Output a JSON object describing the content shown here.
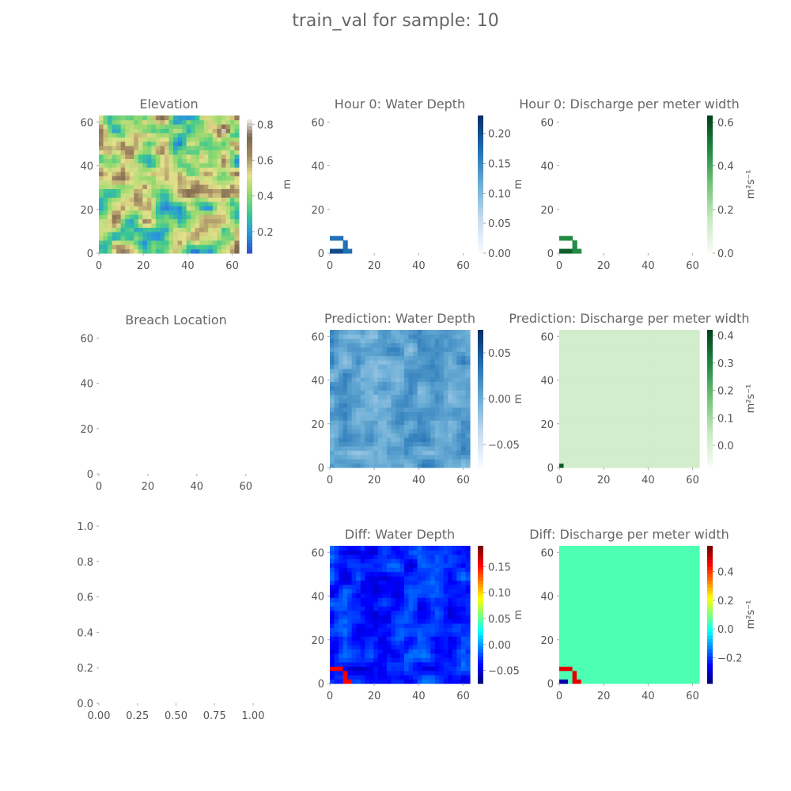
{
  "suptitle": "train_val for sample: 10",
  "colors": {
    "terrain": [
      "#2b55c8",
      "#2a9ad8",
      "#3cc890",
      "#96d96e",
      "#e4e08a",
      "#a28a62",
      "#7d6650",
      "#ffffff"
    ],
    "blues": [
      "#f7fbff",
      "#c6dbef",
      "#6baed6",
      "#2171b5",
      "#08306b"
    ],
    "greens": [
      "#f7fcf5",
      "#c7e9c0",
      "#74c476",
      "#238b45",
      "#00441b"
    ],
    "jet": [
      "#00007f",
      "#0000ff",
      "#007fff",
      "#00ffff",
      "#7fff7f",
      "#ffff00",
      "#ff7f00",
      "#ff0000",
      "#7f0000"
    ]
  },
  "chart_data": [
    {
      "type": "heatmap",
      "title": "Elevation",
      "xticks": [
        "0",
        "20",
        "40",
        "60"
      ],
      "yticks": [
        "0",
        "20",
        "40",
        "60"
      ],
      "xlim": [
        0,
        63
      ],
      "ylim": [
        0,
        63
      ],
      "colormap": "terrain",
      "colorbar": {
        "label": "m",
        "ticks": [
          "0.2",
          "0.4",
          "0.6",
          "0.8"
        ],
        "range": [
          0.08,
          0.85
        ]
      },
      "field": "elevation"
    },
    {
      "type": "heatmap",
      "title": "Hour 0: Water Depth",
      "xticks": [
        "0",
        "20",
        "40",
        "60"
      ],
      "yticks": [
        "0",
        "20",
        "40",
        "60"
      ],
      "xlim": [
        0,
        63
      ],
      "ylim": [
        0,
        63
      ],
      "colormap": "blues",
      "colorbar": {
        "label": "m",
        "ticks": [
          "0.00",
          "0.05",
          "0.10",
          "0.15",
          "0.20"
        ],
        "range": [
          0,
          0.23
        ]
      },
      "field": "breach-arc"
    },
    {
      "type": "heatmap",
      "title": "Hour 0: Discharge per meter width",
      "xticks": [
        "0",
        "20",
        "40",
        "60"
      ],
      "yticks": [
        "0",
        "20",
        "40",
        "60"
      ],
      "xlim": [
        0,
        63
      ],
      "ylim": [
        0,
        63
      ],
      "colormap": "greens",
      "colorbar": {
        "label": "m²s⁻¹",
        "ticks": [
          "0.0",
          "0.2",
          "0.4",
          "0.6"
        ],
        "range": [
          0,
          0.63
        ]
      },
      "field": "breach-arc"
    },
    {
      "type": "heatmap",
      "title": "Breach Location",
      "xticks": [
        "0",
        "20",
        "40",
        "60"
      ],
      "yticks": [
        "0",
        "20",
        "40",
        "60"
      ],
      "xlim": [
        0,
        63
      ],
      "ylim": [
        0,
        63
      ],
      "field": "empty"
    },
    {
      "type": "heatmap",
      "title": "Prediction: Water Depth",
      "xticks": [
        "0",
        "20",
        "40",
        "60"
      ],
      "yticks": [
        "0",
        "20",
        "40",
        "60"
      ],
      "xlim": [
        0,
        63
      ],
      "ylim": [
        0,
        63
      ],
      "colormap": "blues",
      "colorbar": {
        "label": "m",
        "ticks": [
          "−0.05",
          "0.00",
          "0.05"
        ],
        "range": [
          -0.075,
          0.075
        ]
      },
      "field": "prediction-depth"
    },
    {
      "type": "heatmap",
      "title": "Prediction: Discharge per meter width",
      "xticks": [
        "0",
        "20",
        "40",
        "60"
      ],
      "yticks": [
        "0",
        "20",
        "40",
        "60"
      ],
      "xlim": [
        0,
        63
      ],
      "ylim": [
        0,
        63
      ],
      "colormap": "greens",
      "colorbar": {
        "label": "m²s⁻¹",
        "ticks": [
          "0.0",
          "0.1",
          "0.2",
          "0.3",
          "0.4"
        ],
        "range": [
          -0.08,
          0.42
        ]
      },
      "field": "prediction-discharge"
    },
    {
      "type": "scatter",
      "title": "",
      "xticks": [
        "0.00",
        "0.25",
        "0.50",
        "0.75",
        "1.00"
      ],
      "yticks": [
        "0.0",
        "0.2",
        "0.4",
        "0.6",
        "0.8",
        "1.0"
      ],
      "xlim": [
        0,
        1
      ],
      "ylim": [
        0,
        1
      ],
      "field": "empty"
    },
    {
      "type": "heatmap",
      "title": "Diff: Water Depth",
      "xticks": [
        "0",
        "20",
        "40",
        "60"
      ],
      "yticks": [
        "0",
        "20",
        "40",
        "60"
      ],
      "xlim": [
        0,
        63
      ],
      "ylim": [
        0,
        63
      ],
      "colormap": "jet",
      "colorbar": {
        "label": "m",
        "ticks": [
          "−0.05",
          "0.00",
          "0.05",
          "0.10",
          "0.15"
        ],
        "range": [
          -0.075,
          0.19
        ]
      },
      "field": "diff-depth"
    },
    {
      "type": "heatmap",
      "title": "Diff: Discharge per meter width",
      "xticks": [
        "0",
        "20",
        "40",
        "60"
      ],
      "yticks": [
        "0",
        "20",
        "40",
        "60"
      ],
      "xlim": [
        0,
        63
      ],
      "ylim": [
        0,
        63
      ],
      "colormap": "jet",
      "colorbar": {
        "label": "m²s⁻¹",
        "ticks": [
          "−0.2",
          "0.0",
          "0.2",
          "0.4"
        ],
        "range": [
          -0.38,
          0.58
        ]
      },
      "field": "diff-discharge"
    }
  ]
}
